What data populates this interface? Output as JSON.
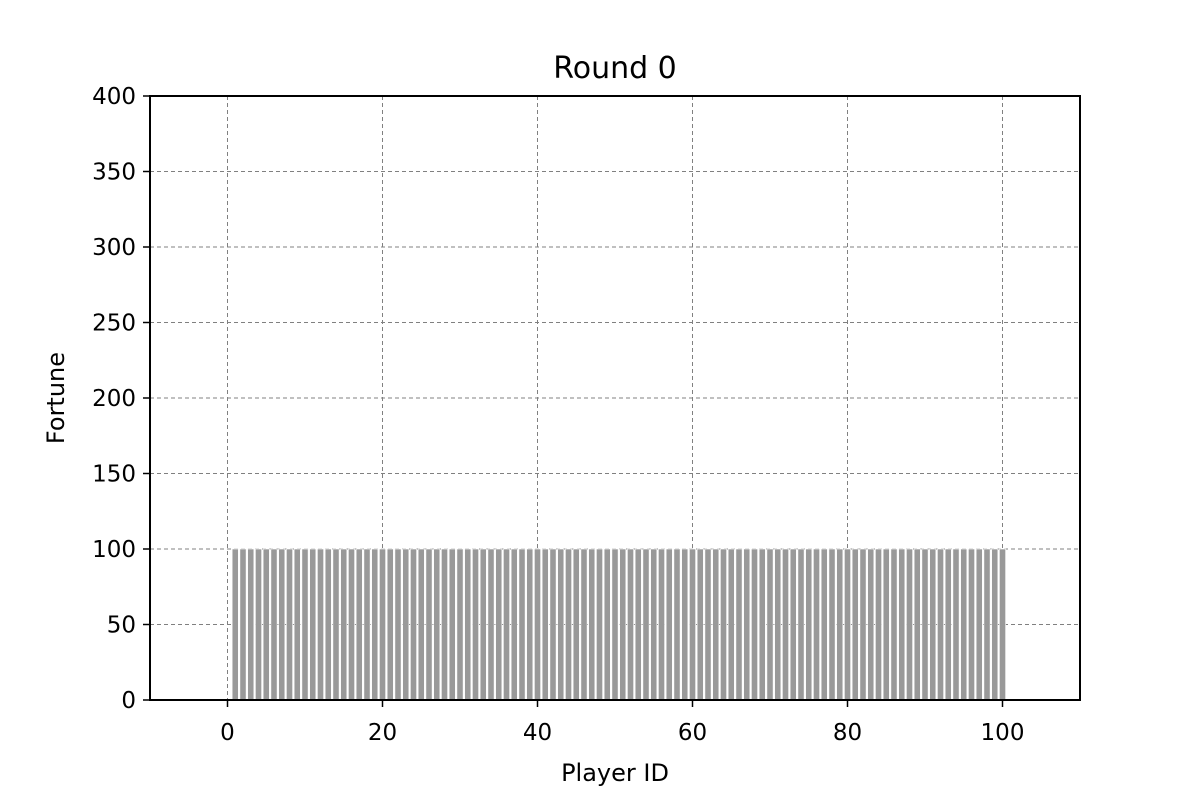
{
  "chart_data": {
    "type": "bar",
    "title": "Round 0",
    "xlabel": "Player ID",
    "ylabel": "Fortune",
    "xlim": [
      -10,
      110
    ],
    "ylim": [
      0,
      400
    ],
    "xticks": [
      0,
      20,
      40,
      60,
      80,
      100
    ],
    "yticks": [
      0,
      50,
      100,
      150,
      200,
      250,
      300,
      350,
      400
    ],
    "grid": true,
    "bar_color": "#999999",
    "bar_edge_color": "#ffffff",
    "grid_color": "#808080",
    "categories": [
      1,
      2,
      3,
      4,
      5,
      6,
      7,
      8,
      9,
      10,
      11,
      12,
      13,
      14,
      15,
      16,
      17,
      18,
      19,
      20,
      21,
      22,
      23,
      24,
      25,
      26,
      27,
      28,
      29,
      30,
      31,
      32,
      33,
      34,
      35,
      36,
      37,
      38,
      39,
      40,
      41,
      42,
      43,
      44,
      45,
      46,
      47,
      48,
      49,
      50,
      51,
      52,
      53,
      54,
      55,
      56,
      57,
      58,
      59,
      60,
      61,
      62,
      63,
      64,
      65,
      66,
      67,
      68,
      69,
      70,
      71,
      72,
      73,
      74,
      75,
      76,
      77,
      78,
      79,
      80,
      81,
      82,
      83,
      84,
      85,
      86,
      87,
      88,
      89,
      90,
      91,
      92,
      93,
      94,
      95,
      96,
      97,
      98,
      99,
      100
    ],
    "values": [
      100,
      100,
      100,
      100,
      100,
      100,
      100,
      100,
      100,
      100,
      100,
      100,
      100,
      100,
      100,
      100,
      100,
      100,
      100,
      100,
      100,
      100,
      100,
      100,
      100,
      100,
      100,
      100,
      100,
      100,
      100,
      100,
      100,
      100,
      100,
      100,
      100,
      100,
      100,
      100,
      100,
      100,
      100,
      100,
      100,
      100,
      100,
      100,
      100,
      100,
      100,
      100,
      100,
      100,
      100,
      100,
      100,
      100,
      100,
      100,
      100,
      100,
      100,
      100,
      100,
      100,
      100,
      100,
      100,
      100,
      100,
      100,
      100,
      100,
      100,
      100,
      100,
      100,
      100,
      100,
      100,
      100,
      100,
      100,
      100,
      100,
      100,
      100,
      100,
      100,
      100,
      100,
      100,
      100,
      100,
      100,
      100,
      100,
      100,
      100
    ]
  }
}
